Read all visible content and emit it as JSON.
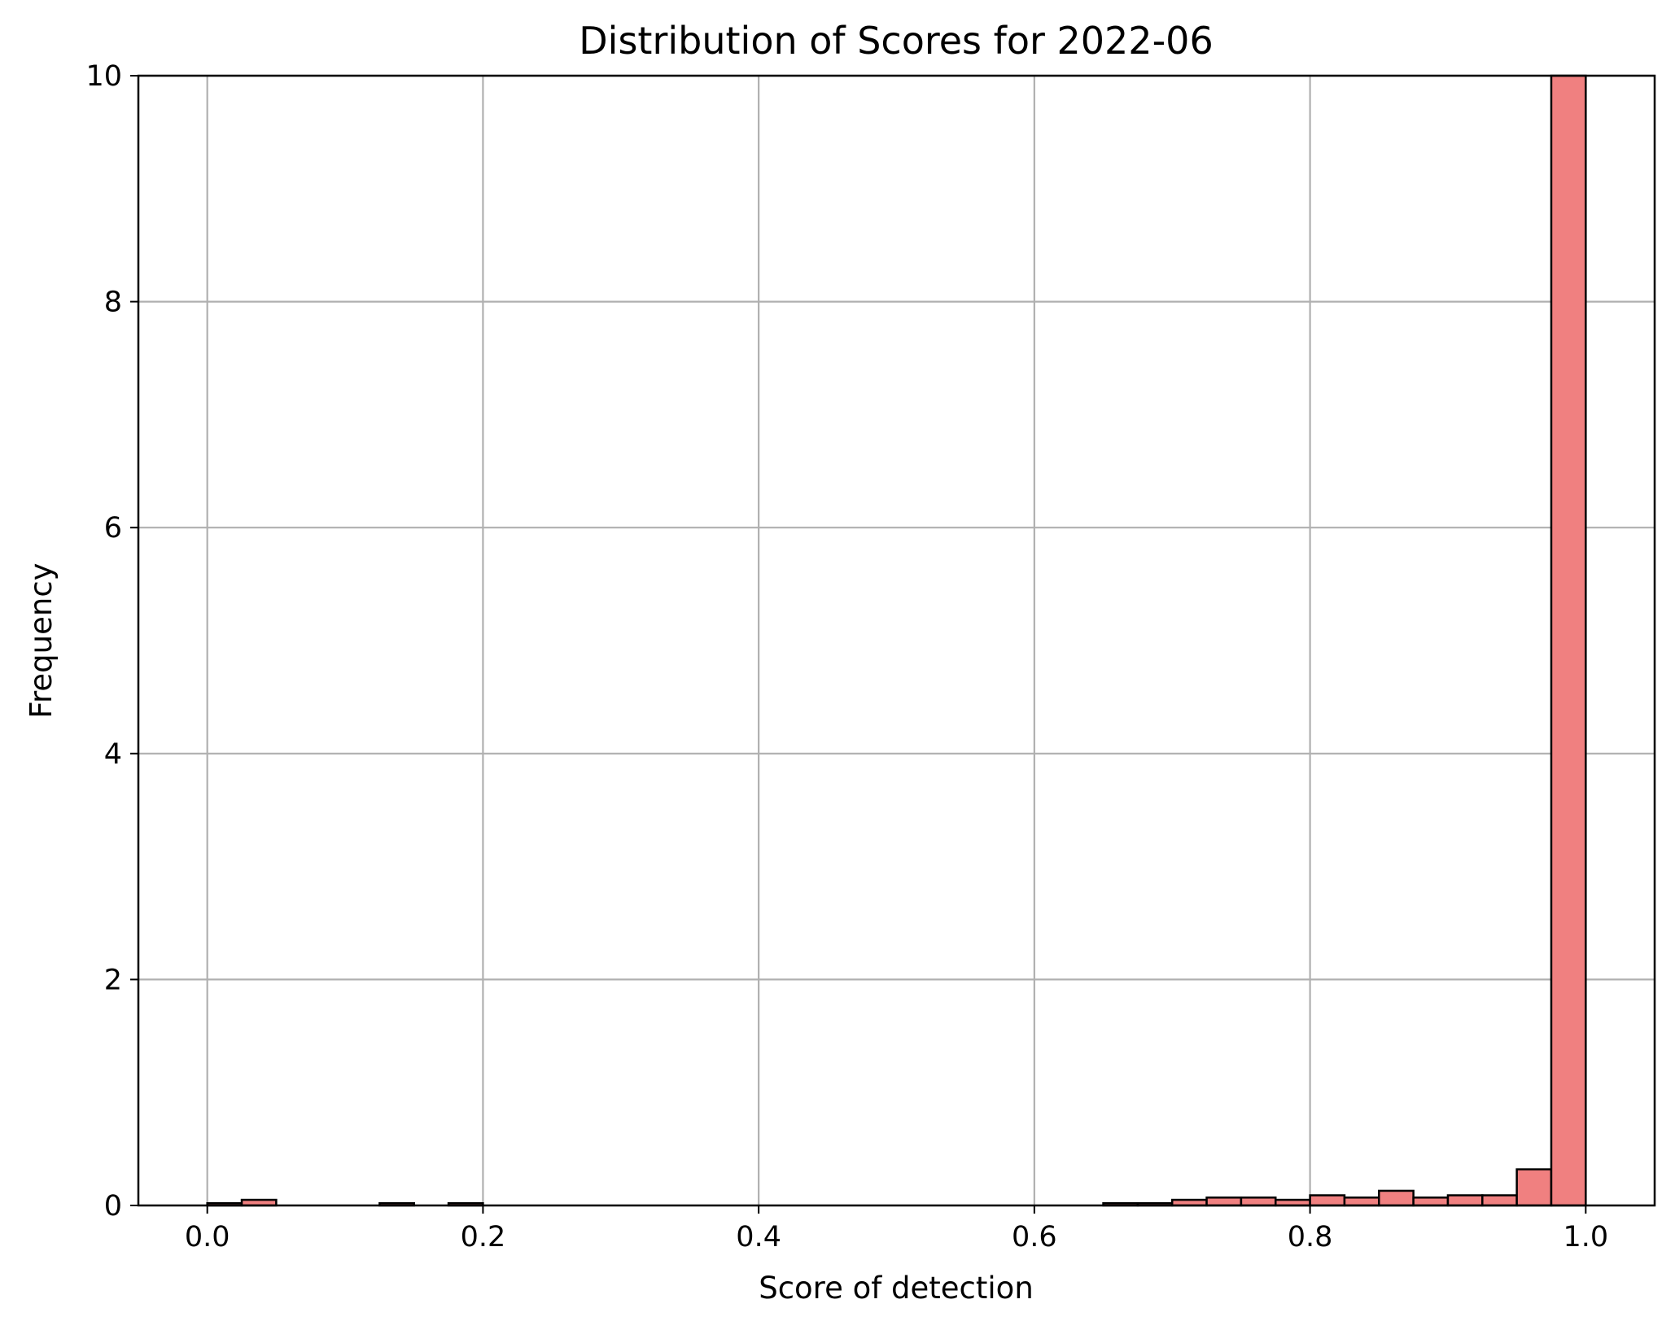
{
  "chart_data": {
    "type": "bar",
    "title": "Distribution of Scores for 2022-06",
    "xlabel": "Score of detection",
    "ylabel": "Frequency",
    "xlim": [
      -0.05,
      1.05
    ],
    "ylim": [
      0,
      10
    ],
    "grid": true,
    "bar_color": "#f08080",
    "edge_color": "#000000",
    "grid_color": "#b0b0b0",
    "x_ticks": [
      {
        "value": 0.0,
        "label": "0.0"
      },
      {
        "value": 0.2,
        "label": "0.2"
      },
      {
        "value": 0.4,
        "label": "0.4"
      },
      {
        "value": 0.6,
        "label": "0.6"
      },
      {
        "value": 0.8,
        "label": "0.8"
      },
      {
        "value": 1.0,
        "label": "1.0"
      }
    ],
    "y_ticks": [
      {
        "value": 0,
        "label": "0"
      },
      {
        "value": 2,
        "label": "2"
      },
      {
        "value": 4,
        "label": "4"
      },
      {
        "value": 6,
        "label": "6"
      },
      {
        "value": 8,
        "label": "8"
      },
      {
        "value": 10,
        "label": "10"
      }
    ],
    "bin_edges": [
      0.0,
      0.025,
      0.05,
      0.075,
      0.1,
      0.125,
      0.15,
      0.175,
      0.2,
      0.225,
      0.25,
      0.275,
      0.3,
      0.325,
      0.35,
      0.375,
      0.4,
      0.425,
      0.45,
      0.475,
      0.5,
      0.525,
      0.55,
      0.575,
      0.6,
      0.625,
      0.65,
      0.675,
      0.7,
      0.725,
      0.75,
      0.775,
      0.8,
      0.825,
      0.85,
      0.875,
      0.9,
      0.925,
      0.95,
      0.975,
      1.0
    ],
    "values": [
      0.02,
      0.05,
      0,
      0,
      0,
      0.02,
      0,
      0.02,
      0,
      0,
      0,
      0,
      0,
      0,
      0,
      0,
      0,
      0,
      0,
      0,
      0,
      0,
      0,
      0,
      0,
      0,
      0.02,
      0.02,
      0.05,
      0.07,
      0.07,
      0.05,
      0.09,
      0.07,
      0.13,
      0.07,
      0.09,
      0.09,
      0.32,
      10
    ]
  }
}
